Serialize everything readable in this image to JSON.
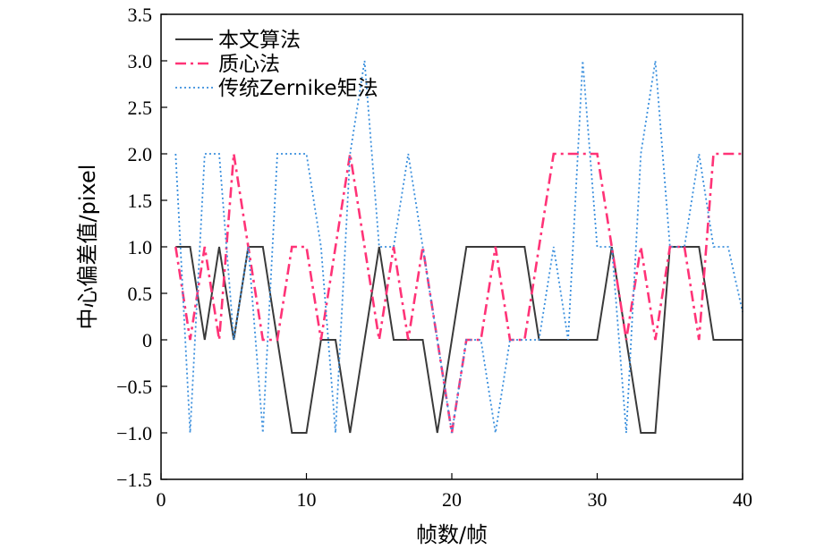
{
  "chart_data": {
    "type": "line",
    "xlabel": "帧数/帧",
    "ylabel": "中心偏差值/pixel",
    "xlim": [
      0,
      40
    ],
    "ylim": [
      -1.5,
      3.5
    ],
    "x_ticks": [
      "0",
      "10",
      "20",
      "30",
      "40"
    ],
    "x_tick_values": [
      0,
      10,
      20,
      30,
      40
    ],
    "y_ticks": [
      "3.5",
      "3.0",
      "2.5",
      "2.0",
      "1.5",
      "1.0",
      "0.5",
      "0",
      "−0.5",
      "−1.0",
      "−1.5"
    ],
    "y_tick_values": [
      3.5,
      3.0,
      2.5,
      2.0,
      1.5,
      1.0,
      0.5,
      0,
      -0.5,
      -1.0,
      -1.5
    ],
    "legend_position": "top-left",
    "series": [
      {
        "name": "本文算法",
        "color": "#3a3a3a",
        "style": "solid",
        "x": [
          1,
          2,
          3,
          4,
          5,
          6,
          7,
          8,
          9,
          10,
          11,
          12,
          13,
          14,
          15,
          16,
          17,
          18,
          19,
          20,
          21,
          22,
          23,
          24,
          25,
          26,
          27,
          28,
          29,
          30,
          31,
          32,
          33,
          34,
          35,
          36,
          37,
          38,
          39,
          40
        ],
        "y": [
          1,
          1,
          0,
          1,
          0,
          1,
          1,
          0,
          -1,
          -1,
          0,
          0,
          -1,
          0,
          1,
          0,
          0,
          0,
          -1,
          0,
          1,
          1,
          1,
          1,
          1,
          0,
          0,
          0,
          0,
          0,
          1,
          0,
          -1,
          -1,
          1,
          1,
          1,
          0,
          0,
          0
        ]
      },
      {
        "name": "质心法",
        "color": "#ff3377",
        "style": "dashdot",
        "x": [
          1,
          2,
          3,
          4,
          5,
          6,
          7,
          8,
          9,
          10,
          11,
          12,
          13,
          14,
          15,
          16,
          17,
          18,
          19,
          20,
          21,
          22,
          23,
          24,
          25,
          26,
          27,
          28,
          29,
          30,
          31,
          32,
          33,
          34,
          35,
          36,
          37,
          38,
          39,
          40
        ],
        "y": [
          1,
          0,
          1,
          0,
          2,
          1,
          0,
          0,
          1,
          1,
          0,
          1,
          2,
          1,
          0,
          1,
          0,
          1,
          0,
          -1,
          0,
          0,
          1,
          0,
          0,
          1,
          2,
          2,
          2,
          2,
          1,
          0,
          1,
          0,
          1,
          1,
          0,
          2,
          2,
          2
        ]
      },
      {
        "name": "传统Zernike矩法",
        "color": "#3a8fdd",
        "style": "dotted",
        "x": [
          1,
          2,
          3,
          4,
          5,
          6,
          7,
          8,
          9,
          10,
          11,
          12,
          13,
          14,
          15,
          16,
          17,
          18,
          19,
          20,
          21,
          22,
          23,
          24,
          25,
          26,
          27,
          28,
          29,
          30,
          31,
          32,
          33,
          34,
          35,
          36,
          37,
          38,
          39,
          40
        ],
        "y": [
          2,
          -1,
          2,
          2,
          0,
          1,
          -1,
          2,
          2,
          2,
          1,
          -1,
          2,
          3,
          1,
          1,
          2,
          1,
          0,
          -1,
          0,
          0,
          -1,
          0,
          0,
          0,
          1,
          0,
          3,
          1,
          1,
          -1,
          2,
          3,
          1,
          1,
          2,
          1,
          1,
          0.3
        ]
      }
    ]
  }
}
